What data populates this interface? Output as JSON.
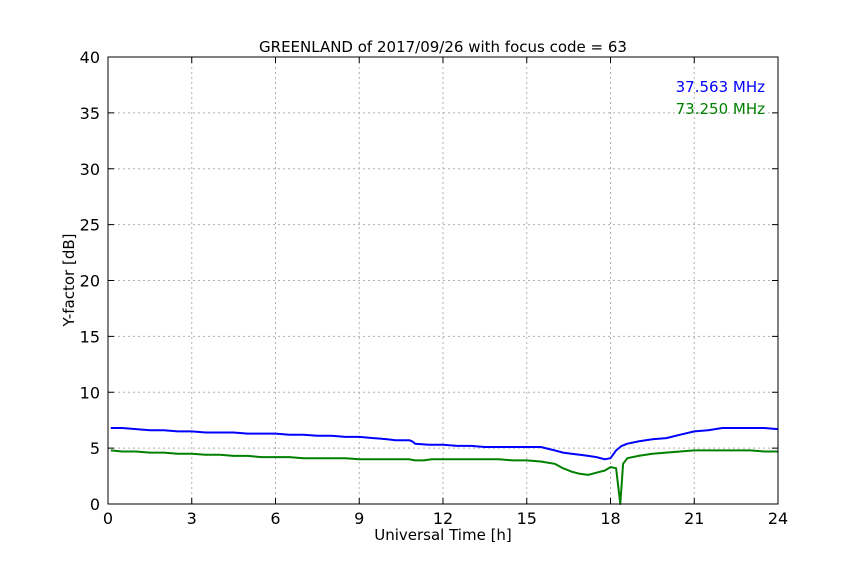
{
  "chart_data": {
    "type": "line",
    "title": "GREENLAND of 2017/09/26 with focus code = 63",
    "xlabel": "Universal Time [h]",
    "ylabel": "Y-factor [dB]",
    "xlim": [
      0,
      24
    ],
    "ylim": [
      0,
      40
    ],
    "xticks": [
      0,
      3,
      6,
      9,
      12,
      15,
      18,
      21,
      24
    ],
    "yticks": [
      0,
      5,
      10,
      15,
      20,
      25,
      30,
      35,
      40
    ],
    "grid": true,
    "legend_position": "top-right",
    "series": [
      {
        "name": "37.563 MHz",
        "color": "#0000ff",
        "x": [
          0.1,
          0.5,
          1,
          1.5,
          2,
          2.5,
          3,
          3.5,
          4,
          4.5,
          5,
          5.5,
          6,
          6.5,
          7,
          7.5,
          8,
          8.5,
          9,
          9.5,
          10,
          10.3,
          10.8,
          10.9,
          11,
          11.5,
          12,
          12.5,
          13,
          13.5,
          14,
          14.5,
          15,
          15.5,
          16,
          16.3,
          16.6,
          16.9,
          17.2,
          17.5,
          17.8,
          18.0,
          18.2,
          18.4,
          18.6,
          19,
          19.5,
          20,
          20.5,
          21,
          21.5,
          22,
          22.5,
          23,
          23.5,
          24
        ],
        "values": [
          6.8,
          6.8,
          6.7,
          6.6,
          6.6,
          6.5,
          6.5,
          6.4,
          6.4,
          6.4,
          6.3,
          6.3,
          6.3,
          6.2,
          6.2,
          6.1,
          6.1,
          6.0,
          6.0,
          5.9,
          5.8,
          5.7,
          5.7,
          5.6,
          5.4,
          5.3,
          5.3,
          5.2,
          5.2,
          5.1,
          5.1,
          5.1,
          5.1,
          5.1,
          4.8,
          4.6,
          4.5,
          4.4,
          4.3,
          4.2,
          4.0,
          4.1,
          4.8,
          5.2,
          5.4,
          5.6,
          5.8,
          5.9,
          6.2,
          6.5,
          6.6,
          6.8,
          6.8,
          6.8,
          6.8,
          6.7
        ]
      },
      {
        "name": "73.250 MHz",
        "color": "#008000",
        "x": [
          0.1,
          0.5,
          1,
          1.5,
          2,
          2.5,
          3,
          3.5,
          4,
          4.5,
          5,
          5.5,
          6,
          6.5,
          7,
          7.5,
          8,
          8.5,
          9,
          9.5,
          10,
          10.5,
          10.8,
          11.0,
          11.3,
          11.6,
          12,
          12.5,
          13,
          13.5,
          14,
          14.5,
          15,
          15.5,
          16,
          16.3,
          16.6,
          16.9,
          17.2,
          17.5,
          17.8,
          18.0,
          18.2,
          18.35,
          18.45,
          18.6,
          19,
          19.5,
          20,
          20.5,
          21,
          21.5,
          22,
          22.5,
          23,
          23.5,
          24
        ],
        "values": [
          4.8,
          4.7,
          4.7,
          4.6,
          4.6,
          4.5,
          4.5,
          4.4,
          4.4,
          4.3,
          4.3,
          4.2,
          4.2,
          4.2,
          4.1,
          4.1,
          4.1,
          4.1,
          4.0,
          4.0,
          4.0,
          4.0,
          4.0,
          3.9,
          3.9,
          4.0,
          4.0,
          4.0,
          4.0,
          4.0,
          4.0,
          3.9,
          3.9,
          3.8,
          3.6,
          3.2,
          2.9,
          2.7,
          2.6,
          2.8,
          3.0,
          3.3,
          3.2,
          0.0,
          3.6,
          4.1,
          4.3,
          4.5,
          4.6,
          4.7,
          4.8,
          4.8,
          4.8,
          4.8,
          4.8,
          4.7,
          4.7
        ]
      }
    ]
  }
}
